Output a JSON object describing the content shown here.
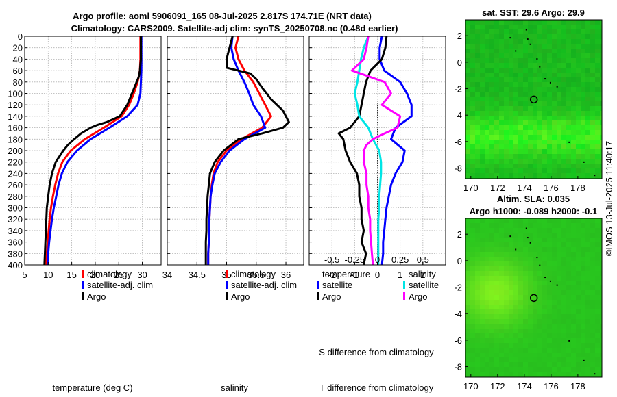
{
  "titles": {
    "main_line1": "Argo profile: aoml 5906091_165 08-Jul-2025 2.817S 174.71E (NRT data)",
    "main_line2": "Climatology: CARS2009. Satellite-adj clim: synTS_20250708.nc (0.48d earlier)",
    "sst_map": "sat. SST: 29.6 Argo: 29.9",
    "sla_line1": "Altim. SLA: 0.035",
    "sla_line2": "Argo h1000: -0.089 h2000: -0.1",
    "copyright": "©IMOS 13-Jul-2025 11:40:17"
  },
  "colors": {
    "climatology": "#ff0000",
    "satellite": "#0000ff",
    "argo": "#000000",
    "s_satellite": "#00e5e5",
    "s_climatology": "#ff00ff",
    "map_green": "#33cc22"
  },
  "chart_data": [
    {
      "type": "line",
      "name": "temperature",
      "xlabel": "temperature (deg C)",
      "xlim": [
        5,
        34
      ],
      "xticks": [
        5,
        10,
        15,
        20,
        25,
        30
      ],
      "ylim": [
        0,
        400
      ],
      "yticks": [
        0,
        20,
        40,
        60,
        80,
        100,
        120,
        140,
        160,
        180,
        200,
        220,
        240,
        260,
        280,
        300,
        320,
        340,
        360,
        380,
        400
      ],
      "legend": [
        "climatology",
        "satellite-adj. clim",
        "Argo"
      ],
      "series": [
        {
          "name": "climatology",
          "color_key": "climatology",
          "depth": [
            0,
            40,
            60,
            80,
            100,
            120,
            140,
            160,
            180,
            200,
            220,
            240,
            260,
            280,
            300,
            320,
            340,
            360,
            380,
            400
          ],
          "values": [
            29.6,
            29.6,
            29.5,
            29.0,
            28.2,
            27.2,
            25.6,
            21.8,
            17.8,
            14.8,
            13.0,
            12.1,
            11.5,
            11.0,
            10.6,
            10.3,
            10.1,
            9.9,
            9.7,
            9.6
          ]
        },
        {
          "name": "satellite-adj. clim",
          "color_key": "satellite",
          "depth": [
            0,
            40,
            60,
            80,
            100,
            120,
            140,
            160,
            180,
            200,
            220,
            240,
            260,
            280,
            300,
            320,
            340,
            360,
            380,
            400
          ],
          "values": [
            29.8,
            29.8,
            29.8,
            29.7,
            29.6,
            29.0,
            26.8,
            23.0,
            19.0,
            16.1,
            14.1,
            12.9,
            12.2,
            11.7,
            11.2,
            10.8,
            10.5,
            10.2,
            10.0,
            9.9
          ]
        },
        {
          "name": "Argo",
          "color_key": "argo",
          "depth": [
            0,
            40,
            60,
            70,
            80,
            100,
            120,
            140,
            150,
            155,
            160,
            170,
            180,
            190,
            200,
            220,
            240,
            260,
            280,
            300,
            320,
            340,
            360,
            380,
            400
          ],
          "values": [
            29.7,
            29.7,
            29.5,
            29.3,
            28.8,
            27.8,
            26.8,
            25.2,
            22.5,
            20.5,
            19.0,
            17.0,
            15.5,
            14.2,
            13.2,
            11.6,
            10.8,
            10.3,
            10.0,
            9.7,
            9.6,
            9.5,
            9.4,
            9.3,
            9.2
          ]
        }
      ]
    },
    {
      "type": "line",
      "name": "salinity",
      "xlabel": "salinity",
      "xlim": [
        34,
        36.3
      ],
      "xticks": [
        34,
        34.5,
        35,
        35.5,
        36
      ],
      "ylim": [
        0,
        400
      ],
      "legend": [
        "climatology",
        "satellite-adj. clim",
        "Argo"
      ],
      "series": [
        {
          "name": "climatology",
          "color_key": "climatology",
          "depth": [
            0,
            20,
            40,
            60,
            80,
            100,
            120,
            140,
            160,
            180,
            200,
            220,
            240,
            260,
            280,
            300,
            320,
            340,
            360,
            380,
            400
          ],
          "values": [
            35.2,
            35.15,
            35.2,
            35.3,
            35.45,
            35.55,
            35.65,
            35.75,
            35.6,
            35.25,
            35.0,
            34.85,
            34.78,
            34.75,
            34.73,
            34.72,
            34.71,
            34.7,
            34.7,
            34.69,
            34.69
          ]
        },
        {
          "name": "satellite-adj. clim",
          "color_key": "satellite",
          "depth": [
            0,
            20,
            40,
            60,
            80,
            100,
            120,
            140,
            160,
            180,
            200,
            220,
            240,
            260,
            280,
            300,
            320,
            340,
            360,
            380,
            400
          ],
          "values": [
            35.1,
            35.08,
            35.12,
            35.2,
            35.3,
            35.38,
            35.45,
            35.58,
            35.65,
            35.3,
            35.05,
            34.9,
            34.8,
            34.76,
            34.73,
            34.72,
            34.71,
            34.7,
            34.7,
            34.69,
            34.69
          ]
        },
        {
          "name": "Argo",
          "color_key": "argo",
          "depth": [
            0,
            20,
            40,
            55,
            65,
            75,
            90,
            110,
            130,
            140,
            150,
            160,
            170,
            180,
            200,
            220,
            240,
            260,
            280,
            300,
            320,
            340,
            360,
            380,
            400
          ],
          "values": [
            35.1,
            35.05,
            35.0,
            35.0,
            35.4,
            35.5,
            35.6,
            35.75,
            35.95,
            36.0,
            36.05,
            35.95,
            35.6,
            35.2,
            34.95,
            34.8,
            34.72,
            34.7,
            34.68,
            34.67,
            34.66,
            34.66,
            34.65,
            34.65,
            34.65
          ]
        }
      ]
    },
    {
      "type": "line",
      "name": "difference",
      "xlabel": "T difference from climatology",
      "xlabel_top": "S difference from climatology",
      "xlim": [
        -3,
        3
      ],
      "xticks": [
        -2,
        -1,
        0,
        1,
        2
      ],
      "xticks_s": [
        "-0.5",
        "-0.25",
        "0",
        "0.25",
        "0.5"
      ],
      "ylim": [
        0,
        400
      ],
      "legend_left_title": "temperature",
      "legend_right_title": "salinity",
      "legend_left": [
        "satellite",
        "Argo"
      ],
      "legend_right": [
        "satellite",
        "Argo"
      ],
      "series": [
        {
          "name": "T satellite",
          "color_key": "satellite",
          "depth": [
            0,
            20,
            40,
            60,
            80,
            100,
            120,
            140,
            160,
            180,
            200,
            220,
            240,
            260,
            280,
            300,
            320,
            340,
            360,
            380,
            400
          ],
          "values": [
            0.2,
            0.1,
            0.1,
            0.3,
            1.0,
            1.3,
            1.5,
            1.5,
            0.8,
            0.6,
            1.2,
            1.1,
            0.8,
            0.6,
            0.5,
            0.4,
            0.35,
            0.3,
            0.25,
            0.25,
            0.2
          ]
        },
        {
          "name": "T Argo",
          "color_key": "argo",
          "depth": [
            0,
            20,
            40,
            60,
            80,
            100,
            120,
            140,
            160,
            170,
            180,
            200,
            220,
            240,
            260,
            280,
            300,
            320,
            340,
            360,
            380,
            400
          ],
          "values": [
            0.4,
            0.35,
            0.2,
            -0.3,
            -0.5,
            -0.6,
            -0.7,
            -0.8,
            -1.2,
            -1.7,
            -1.5,
            -1.4,
            -1.2,
            -0.9,
            -0.8,
            -0.8,
            -0.7,
            -0.7,
            -0.6,
            -0.7,
            -0.5,
            -0.6
          ]
        },
        {
          "name": "S satellite",
          "color_key": "s_satellite",
          "depth": [
            0,
            20,
            40,
            60,
            80,
            100,
            120,
            140,
            160,
            180,
            200,
            220,
            240,
            260,
            280,
            300,
            320,
            340,
            360,
            380,
            400
          ],
          "values": [
            -0.1,
            -0.15,
            -0.18,
            -0.2,
            -0.22,
            -0.25,
            -0.22,
            -0.2,
            -0.1,
            -0.05,
            0.02,
            0.04,
            0.04,
            0.03,
            0.02,
            0.02,
            0.01,
            0.01,
            0.01,
            0.01,
            0.01
          ]
        },
        {
          "name": "S Argo",
          "color_key": "s_climatology",
          "depth": [
            0,
            20,
            40,
            60,
            80,
            100,
            120,
            140,
            160,
            170,
            180,
            190,
            200,
            220,
            240,
            260,
            280,
            300,
            320,
            340,
            360,
            380,
            400
          ],
          "values": [
            -0.1,
            -0.12,
            -0.15,
            -0.28,
            0.08,
            0.15,
            0.05,
            0.25,
            0.22,
            0.08,
            -0.05,
            -0.12,
            -0.15,
            -0.15,
            -0.12,
            -0.12,
            -0.1,
            -0.1,
            -0.08,
            -0.08,
            -0.07,
            -0.06,
            -0.05
          ]
        }
      ]
    },
    {
      "type": "heatmap",
      "name": "sst_map",
      "xticks": [
        170,
        172,
        174,
        176,
        178
      ],
      "yticks": [
        2,
        0,
        -2,
        -4,
        -6,
        -8
      ],
      "xlim": [
        169.6,
        179.8
      ],
      "ylim": [
        -8.8,
        3.2
      ],
      "marker": {
        "lon": 174.71,
        "lat": -2.817
      }
    },
    {
      "type": "heatmap",
      "name": "sla_map",
      "xticks": [
        170,
        172,
        174,
        176,
        178
      ],
      "yticks": [
        2,
        0,
        -2,
        -4,
        -6,
        -8
      ],
      "xlim": [
        169.6,
        179.8
      ],
      "ylim": [
        -8.8,
        3.2
      ],
      "marker": {
        "lon": 174.71,
        "lat": -2.817
      }
    }
  ]
}
